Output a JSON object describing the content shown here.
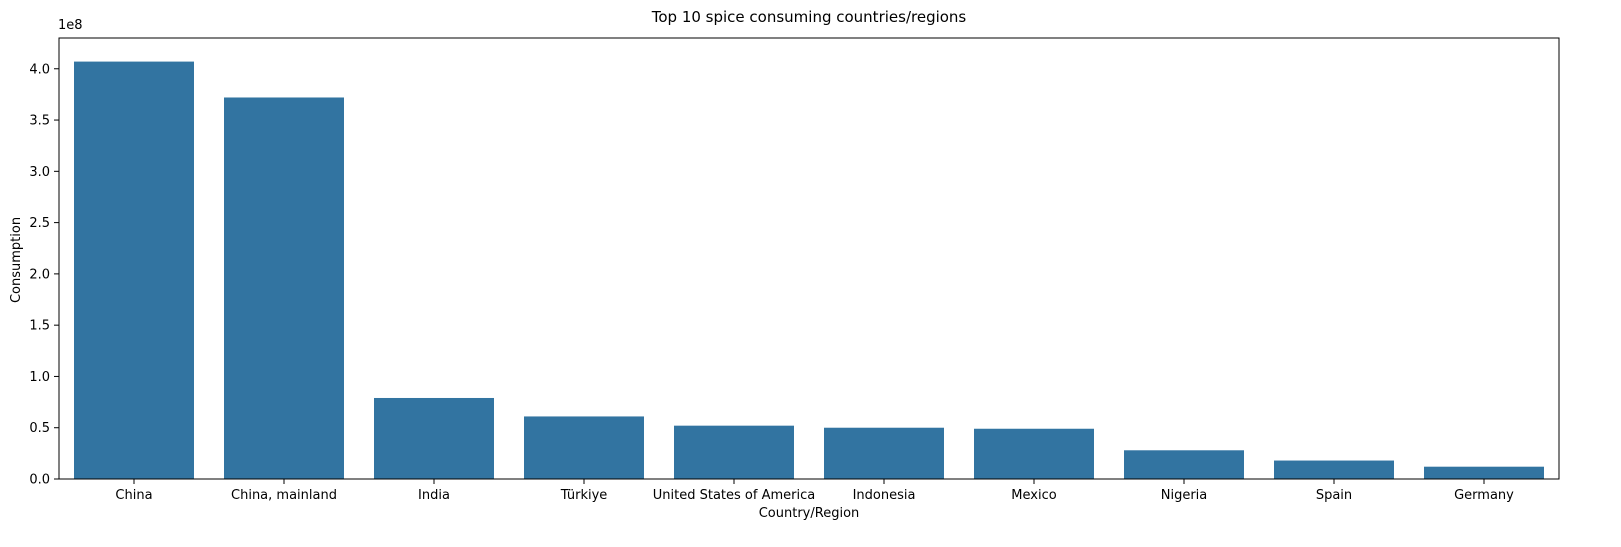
{
  "chart_data": {
    "type": "bar",
    "title": "Top 10 spice consuming countries/regions",
    "xlabel": "Country/Region",
    "ylabel": "Consumption",
    "y_multiplier_label": "1e8",
    "categories": [
      "China",
      "China, mainland",
      "India",
      "Türkiye",
      "United States of America",
      "Indonesia",
      "Mexico",
      "Nigeria",
      "Spain",
      "Germany"
    ],
    "values": [
      407000000,
      372000000,
      79000000,
      61000000,
      52000000,
      50000000,
      49000000,
      28000000,
      18000000,
      12000000
    ],
    "ylim": [
      0,
      430000000
    ],
    "y_ticks": [
      0,
      50000000,
      100000000,
      150000000,
      200000000,
      250000000,
      300000000,
      350000000,
      400000000
    ],
    "y_tick_labels": [
      "0.0",
      "0.5",
      "1.0",
      "1.5",
      "2.0",
      "2.5",
      "3.0",
      "3.5",
      "4.0"
    ],
    "bar_color": "#3274a1",
    "grid": false,
    "legend": "none"
  }
}
